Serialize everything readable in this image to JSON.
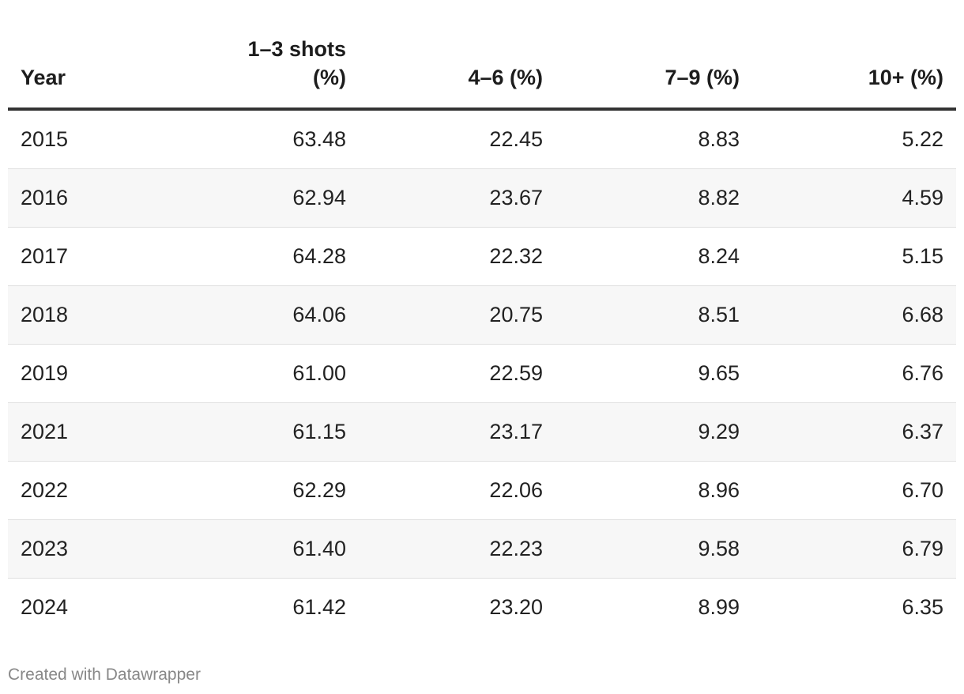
{
  "chart_data": {
    "type": "table",
    "columns": [
      "Year",
      "1–3 shots (%)",
      "4–6 (%)",
      "7–9 (%)",
      "10+ (%)"
    ],
    "rows": [
      [
        "2015",
        "63.48",
        "22.45",
        "8.83",
        "5.22"
      ],
      [
        "2016",
        "62.94",
        "23.67",
        "8.82",
        "4.59"
      ],
      [
        "2017",
        "64.28",
        "22.32",
        "8.24",
        "5.15"
      ],
      [
        "2018",
        "64.06",
        "20.75",
        "8.51",
        "6.68"
      ],
      [
        "2019",
        "61.00",
        "22.59",
        "9.65",
        "6.76"
      ],
      [
        "2021",
        "61.15",
        "23.17",
        "9.29",
        "6.37"
      ],
      [
        "2022",
        "62.29",
        "22.06",
        "8.96",
        "6.70"
      ],
      [
        "2023",
        "61.40",
        "22.23",
        "9.58",
        "6.79"
      ],
      [
        "2024",
        "61.42",
        "23.20",
        "8.99",
        "6.35"
      ]
    ],
    "colors": {
      "header_rule": "#333333",
      "row_divider": "#e0e0e0",
      "alt_row_bg": "#f7f7f7",
      "footer_text": "#888888"
    }
  },
  "footer": {
    "credit": "Created with Datawrapper"
  }
}
